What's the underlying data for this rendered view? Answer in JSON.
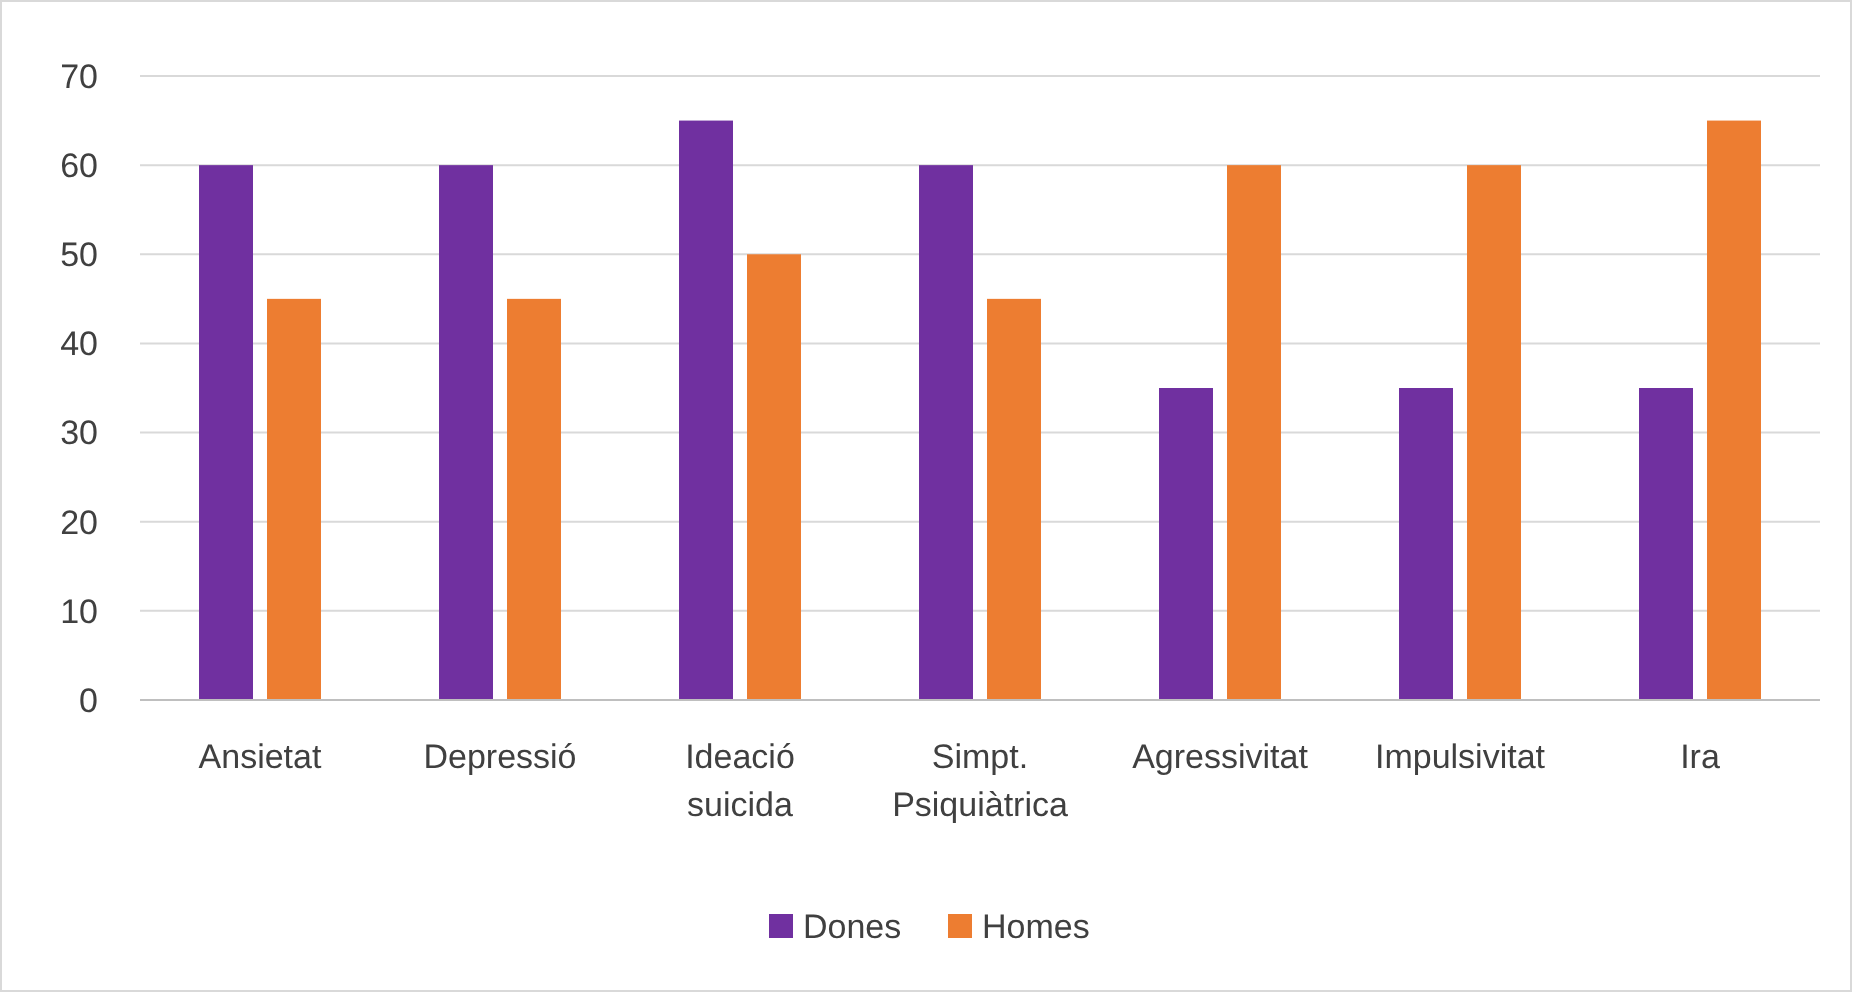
{
  "chart_data": {
    "type": "bar",
    "categories": [
      "Ansietat",
      "Depressió",
      "Ideació suicida",
      "Simpt. Psiquiàtrica",
      "Agressivitat",
      "Impulsivitat",
      "Ira"
    ],
    "series": [
      {
        "name": "Dones",
        "color": "#7030a0",
        "values": [
          60,
          60,
          65,
          60,
          35,
          35,
          35
        ]
      },
      {
        "name": "Homes",
        "color": "#ed7d31",
        "values": [
          45,
          45,
          50,
          45,
          60,
          60,
          65
        ]
      }
    ],
    "ylim": [
      0,
      70
    ],
    "yticks": [
      0,
      10,
      20,
      30,
      40,
      50,
      60,
      70
    ],
    "grid": "y",
    "legend": "bottom"
  }
}
